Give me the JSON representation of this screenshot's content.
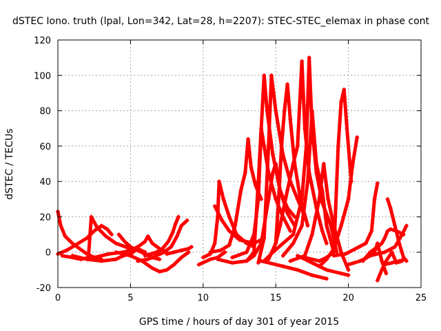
{
  "chart_data": {
    "type": "scatter",
    "title": "dSTEC Iono. truth (lpal, Lon=342, Lat=28, h=2207): STEC-STEC_elemax in phase cont",
    "xlabel": "GPS time / hours of day 301 of year 2015",
    "ylabel": "dSTEC  / TECUs",
    "xlim": [
      0,
      25
    ],
    "ylim": [
      -20,
      120
    ],
    "xticks": [
      0,
      5,
      10,
      15,
      20,
      25
    ],
    "yticks": [
      -20,
      0,
      20,
      40,
      60,
      80,
      100,
      120
    ],
    "grid": true,
    "marker": "+",
    "color": "#ff0000",
    "series": [
      {
        "points": [
          [
            0.0,
            23
          ],
          [
            0.2,
            15
          ],
          [
            0.5,
            9
          ],
          [
            1.0,
            5
          ],
          [
            1.5,
            2
          ],
          [
            2.0,
            -1
          ],
          [
            2.5,
            -3
          ],
          [
            3.0,
            -4
          ]
        ]
      },
      {
        "points": [
          [
            0.0,
            -1
          ],
          [
            0.6,
            1
          ],
          [
            1.2,
            4
          ],
          [
            2.0,
            8
          ],
          [
            2.5,
            12
          ],
          [
            3.0,
            15
          ],
          [
            3.4,
            13
          ],
          [
            3.7,
            10
          ]
        ]
      },
      {
        "points": [
          [
            0.3,
            -2
          ],
          [
            1.0,
            -3
          ],
          [
            1.6,
            -4
          ],
          [
            2.1,
            -3
          ],
          [
            2.3,
            20
          ],
          [
            2.7,
            14
          ],
          [
            3.3,
            9
          ],
          [
            4.0,
            5
          ],
          [
            5.0,
            2
          ],
          [
            6.0,
            0
          ]
        ]
      },
      {
        "points": [
          [
            1.0,
            -2
          ],
          [
            2.0,
            -4
          ],
          [
            3.0,
            -5
          ],
          [
            4.0,
            -4
          ],
          [
            4.5,
            -2
          ],
          [
            5.0,
            -1
          ],
          [
            5.5,
            2
          ],
          [
            6.0,
            0
          ]
        ]
      },
      {
        "points": [
          [
            4.2,
            10
          ],
          [
            4.6,
            6
          ],
          [
            5.0,
            3
          ],
          [
            5.5,
            1
          ],
          [
            6.0,
            -1
          ],
          [
            6.5,
            -3
          ],
          [
            7.0,
            -4
          ]
        ]
      },
      {
        "points": [
          [
            2.5,
            -3
          ],
          [
            3.5,
            -1
          ],
          [
            4.5,
            0
          ],
          [
            5.0,
            1
          ],
          [
            5.5,
            3
          ],
          [
            6.0,
            6
          ],
          [
            6.2,
            9
          ],
          [
            6.5,
            5
          ],
          [
            7.0,
            2
          ],
          [
            7.5,
            0
          ]
        ]
      },
      {
        "points": [
          [
            4.0,
            0
          ],
          [
            5.0,
            -2
          ],
          [
            5.8,
            -5
          ],
          [
            6.5,
            -9
          ],
          [
            7.0,
            -11
          ],
          [
            7.5,
            -10
          ],
          [
            8.0,
            -7
          ],
          [
            8.5,
            -3
          ],
          [
            9.0,
            0
          ]
        ]
      },
      {
        "points": [
          [
            5.5,
            -5
          ],
          [
            6.2,
            -4
          ],
          [
            6.8,
            -2
          ],
          [
            7.3,
            0
          ],
          [
            7.8,
            3
          ],
          [
            8.2,
            9
          ],
          [
            8.5,
            15
          ],
          [
            8.9,
            18
          ]
        ]
      },
      {
        "points": [
          [
            6.0,
            -2
          ],
          [
            6.8,
            0
          ],
          [
            7.2,
            2
          ],
          [
            7.6,
            6
          ],
          [
            7.9,
            11
          ],
          [
            8.1,
            16
          ],
          [
            8.3,
            20
          ]
        ]
      },
      {
        "points": [
          [
            7.5,
            -1
          ],
          [
            8.0,
            0
          ],
          [
            8.5,
            1
          ],
          [
            9.0,
            2
          ],
          [
            9.2,
            3
          ]
        ]
      },
      {
        "points": [
          [
            9.7,
            -7
          ],
          [
            10.5,
            -4
          ],
          [
            11.0,
            -3
          ],
          [
            11.5,
            0
          ]
        ]
      },
      {
        "points": [
          [
            10.0,
            -3
          ],
          [
            10.5,
            -1
          ],
          [
            10.8,
            5
          ],
          [
            11.0,
            20
          ],
          [
            11.1,
            40
          ],
          [
            11.4,
            30
          ],
          [
            11.8,
            20
          ],
          [
            12.3,
            10
          ],
          [
            13.0,
            5
          ],
          [
            13.5,
            3
          ]
        ]
      },
      {
        "points": [
          [
            10.5,
            0
          ],
          [
            11.2,
            1
          ],
          [
            11.8,
            4
          ],
          [
            12.2,
            15
          ],
          [
            12.6,
            35
          ],
          [
            12.9,
            45
          ],
          [
            13.1,
            64
          ],
          [
            13.3,
            48
          ],
          [
            13.6,
            38
          ],
          [
            14.0,
            30
          ]
        ]
      },
      {
        "points": [
          [
            10.8,
            26
          ],
          [
            11.3,
            18
          ],
          [
            11.8,
            12
          ],
          [
            12.5,
            7
          ],
          [
            13.5,
            5
          ],
          [
            14.0,
            7
          ]
        ]
      },
      {
        "points": [
          [
            11.0,
            -4
          ],
          [
            12.0,
            -6
          ],
          [
            13.0,
            -5
          ],
          [
            13.5,
            -2
          ],
          [
            14.0,
            5
          ],
          [
            14.5,
            30
          ],
          [
            14.8,
            45
          ],
          [
            15.0,
            50
          ],
          [
            15.3,
            35
          ],
          [
            15.8,
            22
          ],
          [
            16.3,
            15
          ]
        ]
      },
      {
        "points": [
          [
            12.0,
            -3
          ],
          [
            13.0,
            0
          ],
          [
            13.5,
            10
          ],
          [
            13.8,
            30
          ],
          [
            14.0,
            70
          ],
          [
            14.2,
            60
          ],
          [
            14.5,
            45
          ],
          [
            15.0,
            30
          ],
          [
            15.5,
            20
          ],
          [
            16.0,
            12
          ]
        ]
      },
      {
        "points": [
          [
            13.0,
            -5
          ],
          [
            13.5,
            0
          ],
          [
            13.8,
            40
          ],
          [
            14.0,
            70
          ],
          [
            14.2,
            100
          ],
          [
            14.4,
            80
          ],
          [
            14.8,
            55
          ],
          [
            15.3,
            35
          ],
          [
            15.8,
            25
          ],
          [
            16.3,
            20
          ]
        ]
      },
      {
        "points": [
          [
            13.8,
            -6
          ],
          [
            14.2,
            8
          ],
          [
            14.5,
            60
          ],
          [
            14.7,
            100
          ],
          [
            15.0,
            80
          ],
          [
            15.5,
            55
          ],
          [
            16.0,
            40
          ],
          [
            16.5,
            30
          ],
          [
            17.0,
            20
          ]
        ]
      },
      {
        "points": [
          [
            14.5,
            -4
          ],
          [
            15.0,
            5
          ],
          [
            15.2,
            30
          ],
          [
            15.4,
            60
          ],
          [
            15.6,
            80
          ],
          [
            15.8,
            95
          ],
          [
            16.0,
            75
          ],
          [
            16.3,
            50
          ],
          [
            16.7,
            30
          ],
          [
            17.2,
            15
          ]
        ]
      },
      {
        "points": [
          [
            15.0,
            5
          ],
          [
            15.3,
            15
          ],
          [
            15.8,
            35
          ],
          [
            16.2,
            50
          ],
          [
            16.5,
            60
          ],
          [
            16.8,
            108
          ],
          [
            17.0,
            70
          ],
          [
            17.3,
            45
          ],
          [
            17.8,
            25
          ],
          [
            18.2,
            12
          ],
          [
            18.5,
            5
          ]
        ]
      },
      {
        "points": [
          [
            14.2,
            -5
          ],
          [
            14.8,
            0
          ],
          [
            15.5,
            5
          ],
          [
            16.2,
            10
          ],
          [
            16.8,
            30
          ],
          [
            17.1,
            60
          ],
          [
            17.3,
            110
          ],
          [
            17.5,
            70
          ],
          [
            17.8,
            45
          ],
          [
            18.2,
            28
          ],
          [
            18.8,
            15
          ],
          [
            19.2,
            0
          ]
        ]
      },
      {
        "points": [
          [
            15.5,
            -2
          ],
          [
            16.2,
            5
          ],
          [
            16.8,
            15
          ],
          [
            17.2,
            40
          ],
          [
            17.5,
            80
          ],
          [
            17.8,
            50
          ],
          [
            18.2,
            35
          ],
          [
            18.5,
            15
          ],
          [
            19.0,
            0
          ]
        ]
      },
      {
        "points": [
          [
            16.0,
            -5
          ],
          [
            17.0,
            -2
          ],
          [
            17.5,
            10
          ],
          [
            18.0,
            30
          ],
          [
            18.3,
            50
          ],
          [
            18.6,
            30
          ],
          [
            19.0,
            15
          ],
          [
            19.5,
            0
          ],
          [
            20.0,
            -10
          ]
        ]
      },
      {
        "points": [
          [
            17.0,
            -3
          ],
          [
            18.0,
            -5
          ],
          [
            18.5,
            -3
          ],
          [
            19.0,
            0
          ],
          [
            19.3,
            60
          ],
          [
            19.5,
            85
          ],
          [
            19.7,
            92
          ],
          [
            19.9,
            70
          ],
          [
            20.2,
            40
          ]
        ]
      },
      {
        "points": [
          [
            18.0,
            -8
          ],
          [
            18.5,
            -4
          ],
          [
            19.0,
            2
          ],
          [
            19.5,
            15
          ],
          [
            20.0,
            30
          ],
          [
            20.3,
            50
          ],
          [
            20.6,
            65
          ]
        ]
      },
      {
        "points": [
          [
            14.0,
            -5
          ],
          [
            15.5,
            -8
          ],
          [
            16.5,
            -10
          ],
          [
            17.5,
            -13
          ],
          [
            18.5,
            -15
          ]
        ]
      },
      {
        "points": [
          [
            16.5,
            -2
          ],
          [
            17.5,
            -6
          ],
          [
            18.5,
            -10
          ],
          [
            19.5,
            -12
          ],
          [
            20.0,
            -13
          ]
        ]
      },
      {
        "points": [
          [
            19.0,
            -2
          ],
          [
            19.8,
            -1
          ],
          [
            20.5,
            2
          ],
          [
            21.2,
            5
          ],
          [
            21.6,
            12
          ],
          [
            21.8,
            30
          ],
          [
            22.0,
            39
          ]
        ]
      },
      {
        "points": [
          [
            20.0,
            -7
          ],
          [
            20.8,
            -5
          ],
          [
            21.3,
            -3
          ],
          [
            21.8,
            0
          ],
          [
            22.0,
            5
          ],
          [
            22.3,
            -5
          ],
          [
            22.6,
            -12
          ]
        ]
      },
      {
        "points": [
          [
            21.0,
            -5
          ],
          [
            21.5,
            0
          ],
          [
            22.0,
            3
          ],
          [
            22.3,
            5
          ],
          [
            22.5,
            8
          ],
          [
            22.7,
            12
          ],
          [
            22.9,
            13
          ],
          [
            23.3,
            12
          ],
          [
            23.8,
            10
          ]
        ]
      },
      {
        "points": [
          [
            22.0,
            -16
          ],
          [
            22.3,
            -10
          ],
          [
            22.6,
            -5
          ],
          [
            23.0,
            0
          ],
          [
            23.3,
            -6
          ],
          [
            23.7,
            -5
          ]
        ]
      },
      {
        "points": [
          [
            22.5,
            -7
          ],
          [
            23.0,
            -6
          ],
          [
            23.5,
            -5
          ],
          [
            23.9,
            -4
          ]
        ]
      },
      {
        "points": [
          [
            22.7,
            30
          ],
          [
            22.9,
            25
          ],
          [
            23.2,
            15
          ],
          [
            23.5,
            5
          ],
          [
            23.8,
            -3
          ],
          [
            24.0,
            -5
          ]
        ]
      },
      {
        "points": [
          [
            21.5,
            -2
          ],
          [
            22.5,
            0
          ],
          [
            23.2,
            3
          ],
          [
            23.7,
            10
          ],
          [
            24.0,
            15
          ]
        ]
      }
    ]
  }
}
